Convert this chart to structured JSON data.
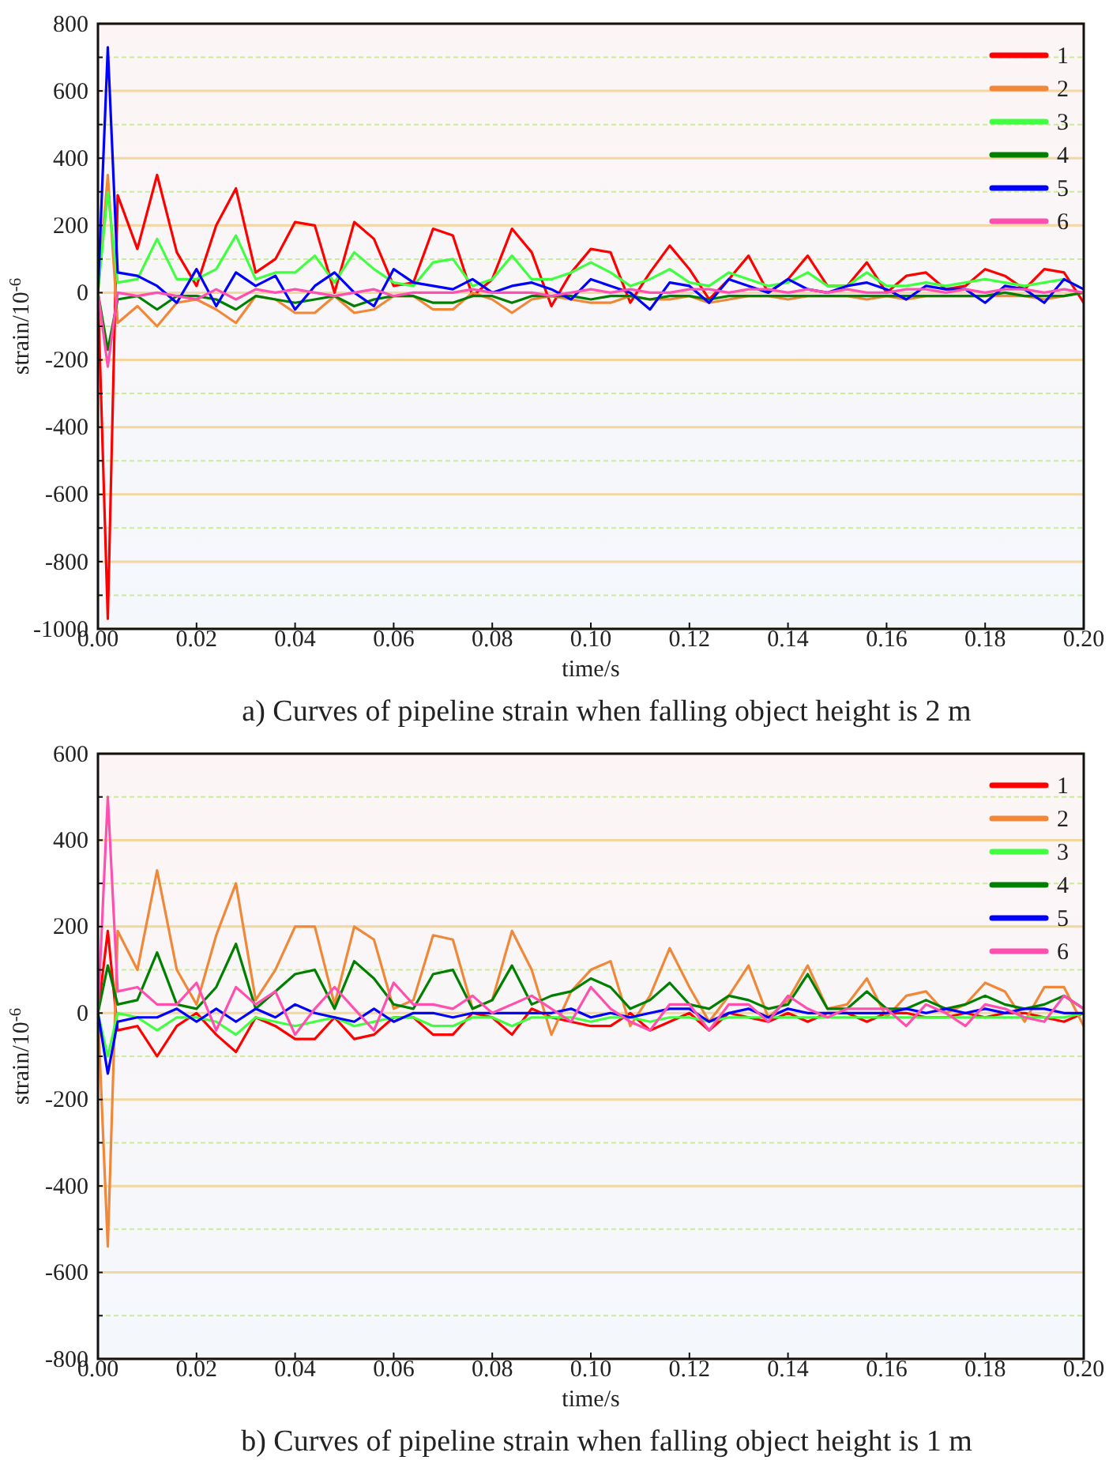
{
  "chart_data": [
    {
      "type": "line",
      "title": "a) Curves of pipeline strain when falling object height is 2 m",
      "xlabel": "time/s",
      "ylabel": "strain/10$^{-6}$",
      "xlim": [
        0,
        0.2
      ],
      "ylim": [
        -1000,
        800
      ],
      "xticks": [
        {
          "value": 0,
          "label": "0.00"
        },
        {
          "value": 0.02,
          "label": "0.02"
        },
        {
          "value": 0.04,
          "label": "0.04"
        },
        {
          "value": 0.06,
          "label": "0.06"
        },
        {
          "value": 0.08,
          "label": "0.08"
        },
        {
          "value": 0.1,
          "label": "0.10"
        },
        {
          "value": 0.12,
          "label": "0.12"
        },
        {
          "value": 0.14,
          "label": "0.14"
        },
        {
          "value": 0.16,
          "label": "0.16"
        },
        {
          "value": 0.18,
          "label": "0.18"
        },
        {
          "value": 0.2,
          "label": "0.20"
        }
      ],
      "yticks": [
        -1000,
        {
          "value": -900,
          "label": null
        },
        -800,
        {
          "value": -700,
          "label": null
        },
        -600,
        {
          "value": -500,
          "label": null
        },
        -400,
        {
          "value": -300,
          "label": null
        },
        -200,
        {
          "value": -100,
          "label": null
        },
        0,
        {
          "value": 100,
          "label": null
        },
        200,
        {
          "value": 300,
          "label": null
        },
        400,
        {
          "value": 500,
          "label": null
        },
        600,
        {
          "value": 700,
          "label": null
        },
        800
      ],
      "grid": "y",
      "legend": "top right",
      "line_style": "solid",
      "x": [
        0,
        0.002,
        0.004,
        0.008,
        0.012,
        0.016,
        0.02,
        0.024,
        0.028,
        0.032,
        0.036,
        0.04,
        0.044,
        0.048,
        0.052,
        0.056,
        0.06,
        0.064,
        0.068,
        0.072,
        0.076,
        0.08,
        0.084,
        0.088,
        0.092,
        0.096,
        0.1,
        0.104,
        0.108,
        0.112,
        0.116,
        0.12,
        0.124,
        0.128,
        0.132,
        0.136,
        0.14,
        0.144,
        0.148,
        0.152,
        0.156,
        0.16,
        0.164,
        0.168,
        0.172,
        0.176,
        0.18,
        0.184,
        0.188,
        0.192,
        0.196,
        0.2
      ],
      "series": [
        {
          "name": "1",
          "color": "#ff0000",
          "values": [
            0,
            -970,
            290,
            130,
            350,
            120,
            20,
            200,
            310,
            60,
            100,
            210,
            200,
            0,
            210,
            160,
            20,
            30,
            190,
            170,
            -10,
            40,
            190,
            120,
            -40,
            60,
            130,
            120,
            -30,
            60,
            140,
            70,
            -20,
            40,
            110,
            0,
            40,
            110,
            20,
            20,
            90,
            0,
            50,
            60,
            10,
            20,
            70,
            50,
            10,
            70,
            60,
            -30
          ]
        },
        {
          "name": "2",
          "color": "#f0883a",
          "values": [
            0,
            350,
            -90,
            -40,
            -100,
            -30,
            -20,
            -50,
            -90,
            -10,
            -20,
            -60,
            -60,
            -10,
            -60,
            -50,
            -10,
            -10,
            -50,
            -50,
            0,
            -20,
            -60,
            -20,
            -10,
            -20,
            -30,
            -30,
            -10,
            -20,
            -20,
            -10,
            -30,
            -20,
            -10,
            -10,
            -20,
            -10,
            -10,
            -10,
            -20,
            -10,
            -20,
            -10,
            -10,
            -10,
            -10,
            -10,
            -10,
            -20,
            -10,
            0
          ]
        },
        {
          "name": "3",
          "color": "#40ff40",
          "values": [
            0,
            300,
            30,
            40,
            160,
            40,
            40,
            70,
            170,
            40,
            60,
            60,
            110,
            30,
            120,
            70,
            30,
            20,
            90,
            100,
            20,
            40,
            110,
            40,
            40,
            60,
            90,
            60,
            20,
            40,
            70,
            30,
            20,
            60,
            40,
            20,
            30,
            60,
            20,
            20,
            60,
            20,
            20,
            30,
            20,
            30,
            40,
            30,
            20,
            30,
            40,
            10
          ]
        },
        {
          "name": "4",
          "color": "#008000",
          "values": [
            0,
            -170,
            -20,
            -10,
            -50,
            -10,
            -10,
            -20,
            -50,
            -10,
            -20,
            -30,
            -20,
            -10,
            -40,
            -20,
            -10,
            -10,
            -30,
            -30,
            -10,
            -10,
            -30,
            -10,
            -10,
            -10,
            -20,
            -10,
            -10,
            -20,
            -10,
            -10,
            -20,
            -10,
            -10,
            -10,
            -10,
            -10,
            -10,
            -10,
            -10,
            -10,
            -10,
            -10,
            -10,
            -10,
            -10,
            0,
            -10,
            -10,
            -10,
            0
          ]
        },
        {
          "name": "5",
          "color": "#0000ff",
          "values": [
            0,
            730,
            60,
            50,
            20,
            -30,
            70,
            -40,
            60,
            20,
            50,
            -50,
            20,
            60,
            0,
            -40,
            70,
            30,
            20,
            10,
            40,
            0,
            20,
            30,
            10,
            -20,
            40,
            20,
            0,
            -50,
            30,
            20,
            -30,
            40,
            20,
            0,
            40,
            10,
            0,
            20,
            30,
            10,
            -20,
            20,
            10,
            10,
            -30,
            20,
            10,
            -30,
            40,
            10
          ]
        },
        {
          "name": "6",
          "color": "#ff50b0",
          "values": [
            0,
            -220,
            0,
            -10,
            0,
            -10,
            -20,
            10,
            -20,
            10,
            0,
            10,
            0,
            -10,
            0,
            10,
            -10,
            0,
            0,
            0,
            10,
            0,
            0,
            0,
            -10,
            0,
            10,
            0,
            10,
            0,
            0,
            10,
            10,
            0,
            10,
            10,
            0,
            10,
            0,
            10,
            0,
            0,
            10,
            10,
            0,
            10,
            0,
            10,
            10,
            0,
            10,
            0
          ]
        }
      ]
    },
    {
      "type": "line",
      "title": "b) Curves of pipeline strain when falling object height is 1 m",
      "xlabel": "time/s",
      "ylabel": "strain/10$^{-6}$",
      "xlim": [
        0,
        0.2
      ],
      "ylim": [
        -800,
        600
      ],
      "xticks": [
        {
          "value": 0,
          "label": "0.00"
        },
        {
          "value": 0.02,
          "label": "0.02"
        },
        {
          "value": 0.04,
          "label": "0.04"
        },
        {
          "value": 0.06,
          "label": "0.06"
        },
        {
          "value": 0.08,
          "label": "0.08"
        },
        {
          "value": 0.1,
          "label": "0.10"
        },
        {
          "value": 0.12,
          "label": "0.12"
        },
        {
          "value": 0.14,
          "label": "0.14"
        },
        {
          "value": 0.16,
          "label": "0.16"
        },
        {
          "value": 0.18,
          "label": "0.18"
        },
        {
          "value": 0.2,
          "label": "0.20"
        }
      ],
      "yticks": [
        -800,
        {
          "value": -700,
          "label": null
        },
        -600,
        {
          "value": -500,
          "label": null
        },
        -400,
        {
          "value": -300,
          "label": null
        },
        -200,
        {
          "value": -100,
          "label": null
        },
        0,
        {
          "value": 100,
          "label": null
        },
        200,
        {
          "value": 300,
          "label": null
        },
        400,
        {
          "value": 500,
          "label": null
        },
        600
      ],
      "grid": "y",
      "legend": "top right",
      "line_style": "solid",
      "x": [
        0,
        0.002,
        0.004,
        0.008,
        0.012,
        0.016,
        0.02,
        0.024,
        0.028,
        0.032,
        0.036,
        0.04,
        0.044,
        0.048,
        0.052,
        0.056,
        0.06,
        0.064,
        0.068,
        0.072,
        0.076,
        0.08,
        0.084,
        0.088,
        0.092,
        0.096,
        0.1,
        0.104,
        0.108,
        0.112,
        0.116,
        0.12,
        0.124,
        0.128,
        0.132,
        0.136,
        0.14,
        0.144,
        0.148,
        0.152,
        0.156,
        0.16,
        0.164,
        0.168,
        0.172,
        0.176,
        0.18,
        0.184,
        0.188,
        0.192,
        0.196,
        0.2
      ],
      "series": [
        {
          "name": "1",
          "color": "#ff0000",
          "values": [
            0,
            190,
            -40,
            -30,
            -100,
            -30,
            0,
            -50,
            -90,
            -10,
            -30,
            -60,
            -60,
            -10,
            -60,
            -50,
            -10,
            -10,
            -50,
            -50,
            0,
            -10,
            -50,
            10,
            -10,
            -20,
            -30,
            -30,
            0,
            -40,
            -20,
            0,
            -40,
            0,
            -10,
            -20,
            0,
            -20,
            0,
            0,
            -20,
            0,
            0,
            -10,
            -10,
            0,
            -10,
            0,
            0,
            -10,
            -20,
            0
          ]
        },
        {
          "name": "2",
          "color": "#f0883a",
          "values": [
            0,
            -540,
            190,
            100,
            330,
            100,
            20,
            180,
            300,
            30,
            100,
            200,
            200,
            20,
            200,
            170,
            10,
            30,
            180,
            170,
            10,
            30,
            190,
            100,
            -50,
            50,
            100,
            120,
            -30,
            40,
            150,
            60,
            -20,
            40,
            110,
            -10,
            30,
            110,
            10,
            20,
            80,
            -10,
            40,
            50,
            0,
            20,
            70,
            50,
            -20,
            60,
            60,
            -30
          ]
        },
        {
          "name": "3",
          "color": "#40ff40",
          "values": [
            0,
            -100,
            0,
            -10,
            -40,
            -10,
            -10,
            -20,
            -50,
            -10,
            -20,
            -30,
            -20,
            -10,
            -30,
            -20,
            -10,
            -10,
            -30,
            -30,
            -10,
            -10,
            -30,
            -10,
            -10,
            -10,
            -20,
            -10,
            -10,
            -20,
            -10,
            -10,
            -20,
            -10,
            -10,
            -10,
            -10,
            -10,
            -10,
            -10,
            -10,
            -10,
            -10,
            -10,
            -10,
            -10,
            -10,
            -10,
            -10,
            -10,
            -10,
            0
          ]
        },
        {
          "name": "4",
          "color": "#008000",
          "values": [
            0,
            110,
            20,
            30,
            140,
            20,
            10,
            60,
            160,
            10,
            50,
            90,
            100,
            10,
            120,
            80,
            20,
            10,
            90,
            100,
            10,
            30,
            110,
            20,
            40,
            50,
            80,
            60,
            10,
            30,
            70,
            20,
            10,
            40,
            30,
            10,
            20,
            90,
            10,
            10,
            50,
            10,
            10,
            30,
            10,
            20,
            40,
            20,
            10,
            20,
            40,
            10
          ]
        },
        {
          "name": "5",
          "color": "#0000ff",
          "values": [
            0,
            -140,
            -20,
            -10,
            -10,
            10,
            -20,
            10,
            -20,
            10,
            -10,
            20,
            0,
            -10,
            -20,
            10,
            -20,
            0,
            0,
            -10,
            0,
            0,
            0,
            0,
            0,
            10,
            -10,
            0,
            -10,
            0,
            10,
            10,
            -20,
            0,
            10,
            -10,
            10,
            0,
            0,
            0,
            0,
            0,
            10,
            0,
            10,
            0,
            10,
            0,
            10,
            10,
            0,
            0
          ]
        },
        {
          "name": "6",
          "color": "#ff50b0",
          "values": [
            0,
            500,
            50,
            60,
            20,
            20,
            70,
            -40,
            60,
            20,
            50,
            -50,
            10,
            60,
            10,
            -40,
            70,
            20,
            20,
            10,
            40,
            0,
            20,
            40,
            10,
            -20,
            60,
            10,
            -20,
            -40,
            20,
            20,
            -40,
            20,
            20,
            -20,
            40,
            10,
            -10,
            10,
            10,
            10,
            -30,
            20,
            0,
            -30,
            20,
            10,
            -10,
            -20,
            40,
            10
          ]
        }
      ]
    }
  ]
}
